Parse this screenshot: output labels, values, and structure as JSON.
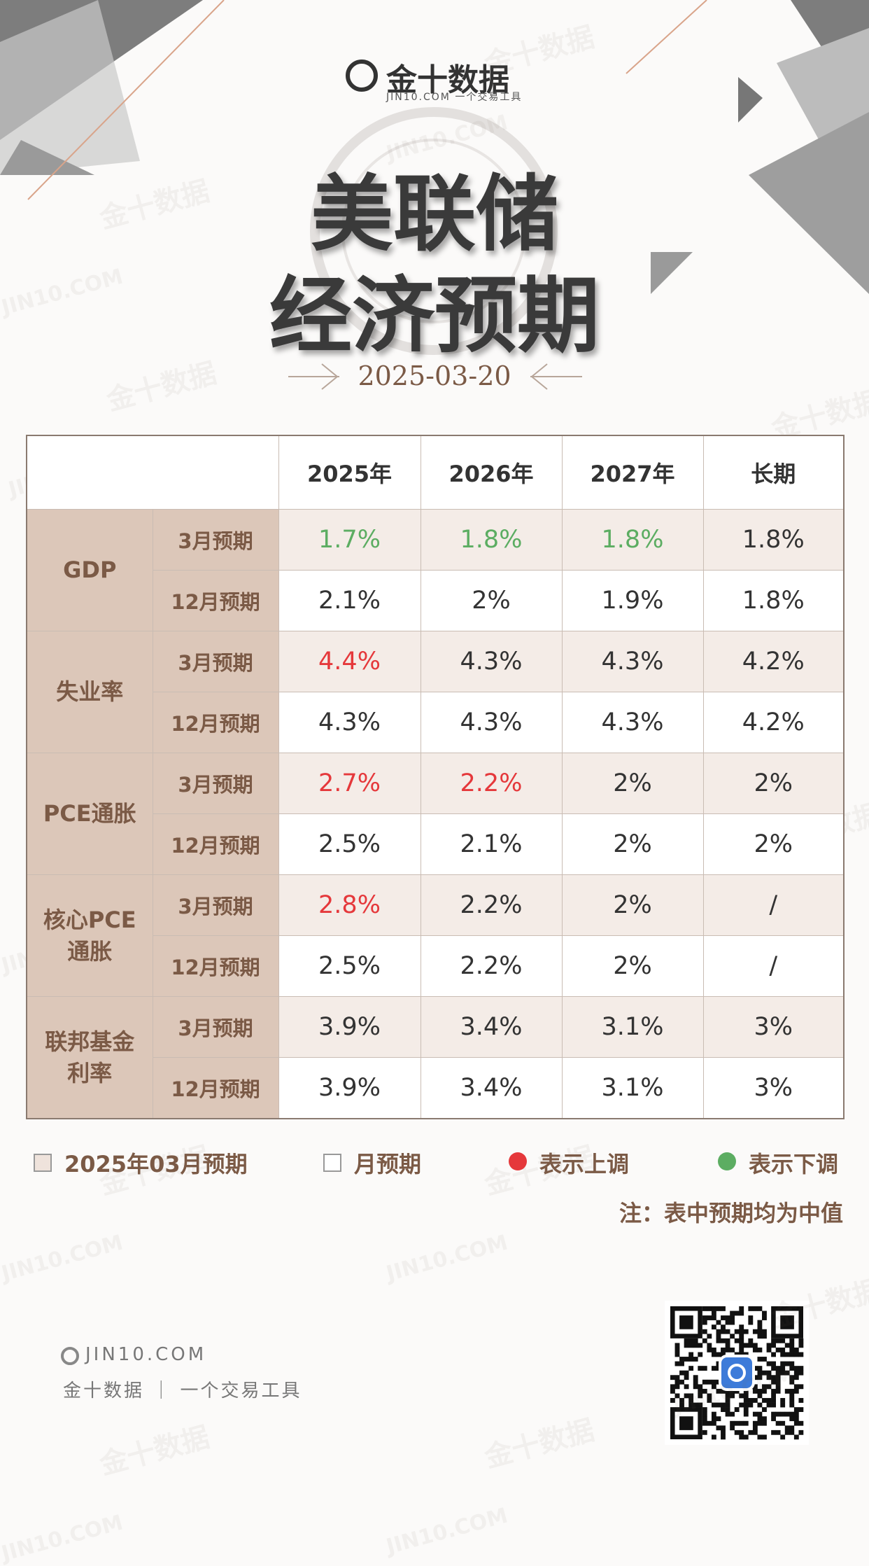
{
  "header": {
    "logo": "金十数据",
    "site": "JIN10.COM",
    "slogan": "一个交易工具",
    "title_lines": [
      "美联储",
      "经济预期"
    ],
    "date": "2025-03-20"
  },
  "watermark": {
    "brand": "金十数据",
    "site": "JIN10.COM"
  },
  "table": {
    "columns": [
      "2025年",
      "2026年",
      "2027年",
      "长期"
    ],
    "groups": [
      {
        "label": "GDP",
        "rows": [
          {
            "label": "3月预期",
            "highlight": true,
            "cells": [
              {
                "text": "1.7%",
                "trend": "down"
              },
              {
                "text": "1.8%",
                "trend": "down"
              },
              {
                "text": "1.8%",
                "trend": "down"
              },
              {
                "text": "1.8%"
              }
            ]
          },
          {
            "label": "12月预期",
            "cells": [
              {
                "text": "2.1%"
              },
              {
                "text": "2%"
              },
              {
                "text": "1.9%"
              },
              {
                "text": "1.8%"
              }
            ]
          }
        ]
      },
      {
        "label": "失业率",
        "rows": [
          {
            "label": "3月预期",
            "highlight": true,
            "cells": [
              {
                "text": "4.4%",
                "trend": "up"
              },
              {
                "text": "4.3%"
              },
              {
                "text": "4.3%"
              },
              {
                "text": "4.2%"
              }
            ]
          },
          {
            "label": "12月预期",
            "cells": [
              {
                "text": "4.3%"
              },
              {
                "text": "4.3%"
              },
              {
                "text": "4.3%"
              },
              {
                "text": "4.2%"
              }
            ]
          }
        ]
      },
      {
        "label": "PCE通胀",
        "rows": [
          {
            "label": "3月预期",
            "highlight": true,
            "cells": [
              {
                "text": "2.7%",
                "trend": "up"
              },
              {
                "text": "2.2%",
                "trend": "up"
              },
              {
                "text": "2%"
              },
              {
                "text": "2%"
              }
            ]
          },
          {
            "label": "12月预期",
            "cells": [
              {
                "text": "2.5%"
              },
              {
                "text": "2.1%"
              },
              {
                "text": "2%"
              },
              {
                "text": "2%"
              }
            ]
          }
        ]
      },
      {
        "label": "核心PCE通胀",
        "rows": [
          {
            "label": "3月预期",
            "highlight": true,
            "cells": [
              {
                "text": "2.8%",
                "trend": "up"
              },
              {
                "text": "2.2%"
              },
              {
                "text": "2%"
              },
              {
                "text": "/"
              }
            ]
          },
          {
            "label": "12月预期",
            "cells": [
              {
                "text": "2.5%"
              },
              {
                "text": "2.2%"
              },
              {
                "text": "2%"
              },
              {
                "text": "/"
              }
            ]
          }
        ]
      },
      {
        "label": "联邦基金利率",
        "rows": [
          {
            "label": "3月预期",
            "highlight": true,
            "cells": [
              {
                "text": "3.9%"
              },
              {
                "text": "3.4%"
              },
              {
                "text": "3.1%"
              },
              {
                "text": "3%"
              }
            ]
          },
          {
            "label": "12月预期",
            "cells": [
              {
                "text": "3.9%"
              },
              {
                "text": "3.4%"
              },
              {
                "text": "3.1%"
              },
              {
                "text": "3%"
              }
            ]
          }
        ]
      }
    ]
  },
  "legend": [
    {
      "label": "2025年03月预期",
      "shape": "square",
      "color": "#efe3dc"
    },
    {
      "label": "月预期",
      "shape": "square",
      "color": "#ffffff"
    },
    {
      "label": "表示上调",
      "shape": "circle",
      "color": "#e5383b"
    },
    {
      "label": "表示下调",
      "shape": "circle",
      "color": "#5cad62"
    }
  ],
  "note": "注：表中预期均为中值",
  "footer": {
    "site": "JIN10.COM",
    "brand": "金十数据",
    "slogan": "一个交易工具"
  }
}
